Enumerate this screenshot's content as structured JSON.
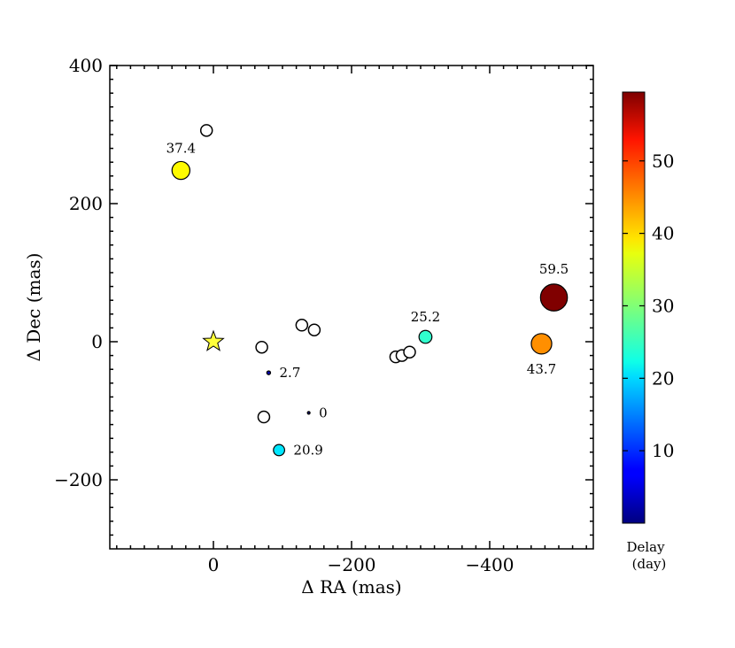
{
  "chart_data": {
    "type": "scatter",
    "xlabel": "Δ RA (mas)",
    "ylabel": "Δ Dec (mas)",
    "xlim": [
      150,
      -550
    ],
    "ylim": [
      -300,
      400
    ],
    "x_ticks": [
      0,
      -200,
      -400
    ],
    "x_tick_labels": [
      "0",
      "−200",
      "−400"
    ],
    "y_ticks": [
      -200,
      0,
      200,
      400
    ],
    "y_tick_labels": [
      "−200",
      "0",
      "200",
      "400"
    ],
    "star": {
      "x": 0,
      "y": 0,
      "color": "#ffff3a"
    },
    "colored_points": [
      {
        "x": -138,
        "y": -103,
        "delay": 0,
        "label": "0"
      },
      {
        "x": -80,
        "y": -45,
        "delay": 2.7,
        "label": "2.7"
      },
      {
        "x": -95,
        "y": -157,
        "delay": 20.9,
        "label": "20.9"
      },
      {
        "x": -307,
        "y": 7,
        "delay": 25.2,
        "label": "25.2"
      },
      {
        "x": 47,
        "y": 248,
        "delay": 37.4,
        "label": "37.4"
      },
      {
        "x": -475,
        "y": -3,
        "delay": 43.7,
        "label": "43.7"
      },
      {
        "x": -493,
        "y": 64,
        "delay": 59.5,
        "label": "59.5"
      }
    ],
    "open_points": [
      {
        "x": 10,
        "y": 306
      },
      {
        "x": -70,
        "y": -8
      },
      {
        "x": -73,
        "y": -109
      },
      {
        "x": -128,
        "y": 24
      },
      {
        "x": -146,
        "y": 17
      },
      {
        "x": -264,
        "y": -22
      },
      {
        "x": -273,
        "y": -20
      },
      {
        "x": -284,
        "y": -15
      }
    ],
    "colorbar": {
      "colormap": "jet",
      "range": [
        0,
        59.5
      ],
      "ticks": [
        10,
        20,
        30,
        40,
        50
      ],
      "tick_labels": [
        "10",
        "20",
        "30",
        "40",
        "50"
      ],
      "label_line1": "Delay",
      "label_line2": "(day)"
    }
  }
}
